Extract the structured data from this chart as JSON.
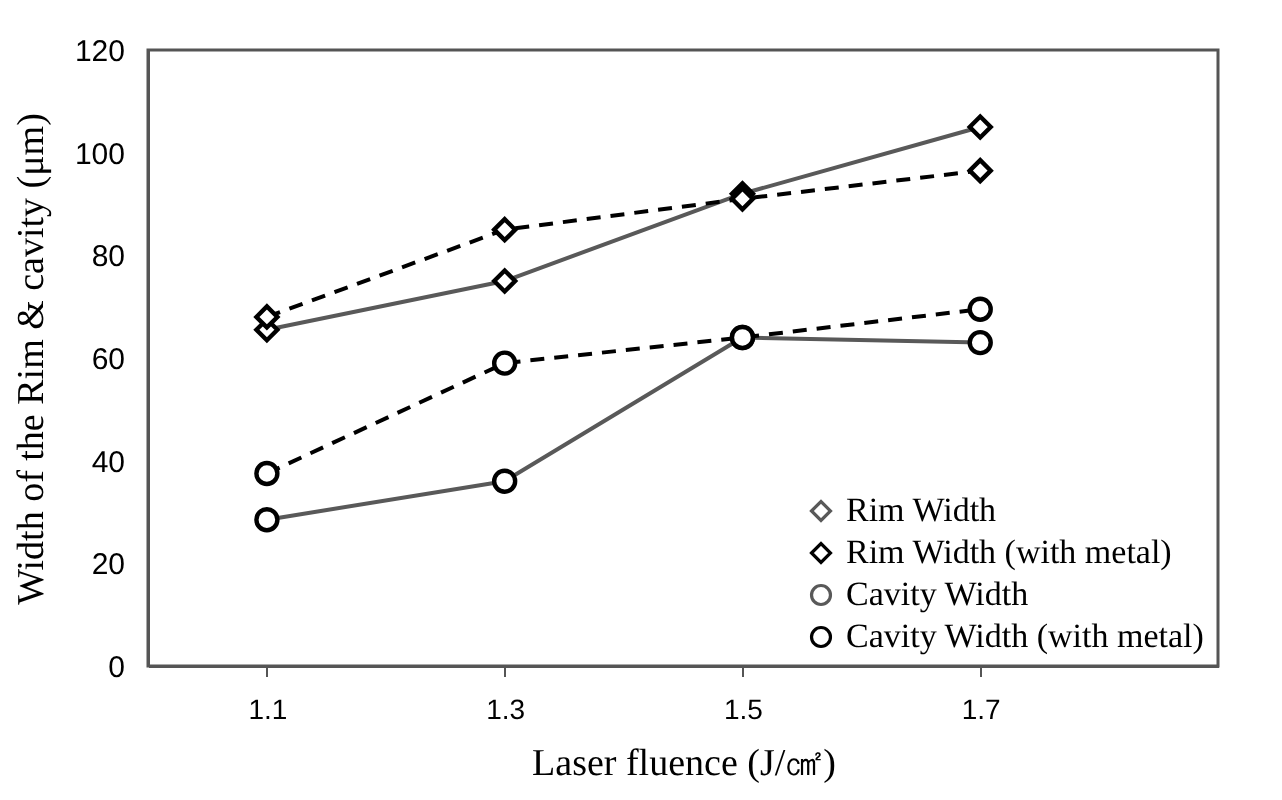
{
  "chart_data": {
    "type": "line",
    "xlabel": "Laser fluence (J/㎠)",
    "ylabel": "Width of the Rim & cavity (μm)",
    "categories": [
      "1.1",
      "1.3",
      "1.5",
      "1.7"
    ],
    "series": [
      {
        "name": "Rim Width",
        "color": "#595959",
        "marker": "diamond",
        "line_style": "solid",
        "values": [
          65.5,
          75,
          92,
          105
        ]
      },
      {
        "name": "Rim Width (with metal)",
        "color": "#000000",
        "marker": "diamond",
        "line_style": "dashed",
        "values": [
          68,
          85,
          91,
          96.5
        ]
      },
      {
        "name": "Cavity Width",
        "color": "#595959",
        "marker": "circle",
        "line_style": "solid",
        "values": [
          28.5,
          36,
          64,
          63
        ]
      },
      {
        "name": "Cavity Width (with metal)",
        "color": "#000000",
        "marker": "circle",
        "line_style": "dashed",
        "values": [
          37.5,
          59,
          64,
          69.5
        ]
      }
    ],
    "ylim": [
      0,
      120
    ],
    "yticks": [
      0,
      20,
      40,
      60,
      80,
      100,
      120
    ],
    "grid": false,
    "legend": "bottom right"
  }
}
